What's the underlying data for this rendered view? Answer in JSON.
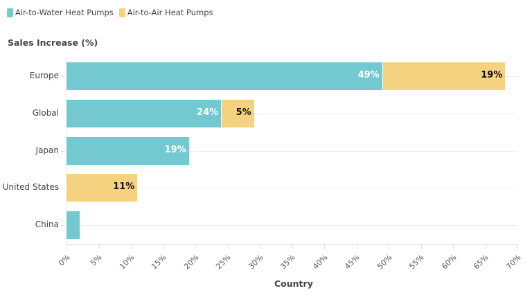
{
  "legend": [
    {
      "label": "Air-to-Water Heat Pumps",
      "color": "#74c9d0"
    },
    {
      "label": "Air-to-Air Heat Pumps",
      "color": "#f5d27f"
    }
  ],
  "y_title": "Sales Increase (%)",
  "x_title": "Country",
  "rows": [
    {
      "label": "Europe",
      "water": 49,
      "air": 19,
      "water_label": "49%",
      "air_label": "19%"
    },
    {
      "label": "Global",
      "water": 24,
      "air": 5,
      "water_label": "24%",
      "air_label": "5%"
    },
    {
      "label": "Japan",
      "water": 19,
      "air": 0,
      "water_label": "19%",
      "air_label": ""
    },
    {
      "label": "United States",
      "water": 0,
      "air": 11,
      "water_label": "",
      "air_label": "11%"
    },
    {
      "label": "China",
      "water": 2,
      "air": 0,
      "water_label": "",
      "air_label": ""
    }
  ],
  "x_ticks": [
    "0%",
    "5%",
    "10%",
    "15%",
    "20%",
    "25%",
    "30%",
    "35%",
    "40%",
    "45%",
    "50%",
    "55%",
    "60%",
    "65%",
    "70%"
  ],
  "chart_data": {
    "type": "bar",
    "orientation": "horizontal",
    "stacked": true,
    "categories": [
      "Europe",
      "Global",
      "Japan",
      "United States",
      "China"
    ],
    "series": [
      {
        "name": "Air-to-Water Heat Pumps",
        "color": "#74c9d0",
        "values": [
          49,
          24,
          19,
          0,
          2
        ]
      },
      {
        "name": "Air-to-Air Heat Pumps",
        "color": "#f5d27f",
        "values": [
          19,
          5,
          0,
          11,
          0
        ]
      }
    ],
    "title": "",
    "xlabel": "Country",
    "ylabel": "Sales Increase (%)",
    "xlim": [
      0,
      70
    ],
    "x_ticks": [
      "0%",
      "5%",
      "10%",
      "15%",
      "20%",
      "25%",
      "30%",
      "35%",
      "40%",
      "45%",
      "50%",
      "55%",
      "60%",
      "65%",
      "70%"
    ],
    "grid": true,
    "legend_position": "top-left",
    "data_labels": true
  }
}
